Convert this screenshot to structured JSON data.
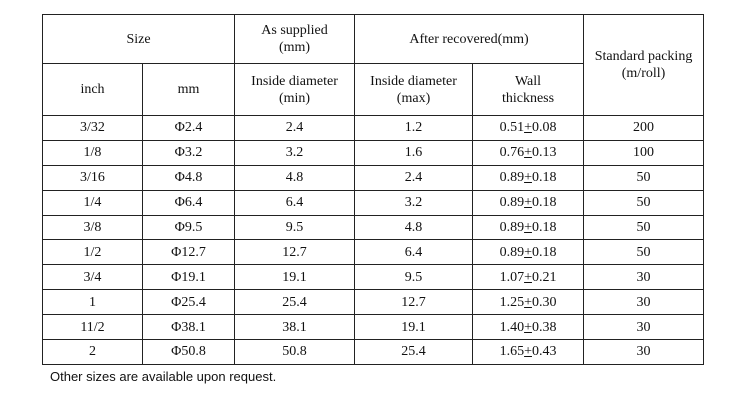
{
  "table": {
    "headers": {
      "size": "Size",
      "as_supplied": "As supplied\n(mm)",
      "after_recovered": "After recovered(mm)",
      "standard_packing": "Standard packing\n(m/roll)",
      "inch": "inch",
      "mm": "mm",
      "inside_diameter_min": "Inside diameter\n(min)",
      "inside_diameter_max": "Inside diameter\n(max)",
      "wall_thickness": "Wall\nthickness"
    },
    "rows": [
      {
        "inch": "3/32",
        "mm": "Φ2.4",
        "supplied_min": "2.4",
        "recovered_max": "1.2",
        "wall_base": "0.51",
        "wall_tol": "0.08",
        "packing": "200"
      },
      {
        "inch": "1/8",
        "mm": "Φ3.2",
        "supplied_min": "3.2",
        "recovered_max": "1.6",
        "wall_base": "0.76",
        "wall_tol": "0.13",
        "packing": "100"
      },
      {
        "inch": "3/16",
        "mm": "Φ4.8",
        "supplied_min": "4.8",
        "recovered_max": "2.4",
        "wall_base": "0.89",
        "wall_tol": "0.18",
        "packing": "50"
      },
      {
        "inch": "1/4",
        "mm": "Φ6.4",
        "supplied_min": "6.4",
        "recovered_max": "3.2",
        "wall_base": "0.89",
        "wall_tol": "0.18",
        "packing": "50"
      },
      {
        "inch": "3/8",
        "mm": "Φ9.5",
        "supplied_min": "9.5",
        "recovered_max": "4.8",
        "wall_base": "0.89",
        "wall_tol": "0.18",
        "packing": "50"
      },
      {
        "inch": "1/2",
        "mm": "Φ12.7",
        "supplied_min": "12.7",
        "recovered_max": "6.4",
        "wall_base": "0.89",
        "wall_tol": "0.18",
        "packing": "50"
      },
      {
        "inch": "3/4",
        "mm": "Φ19.1",
        "supplied_min": "19.1",
        "recovered_max": "9.5",
        "wall_base": "1.07",
        "wall_tol": "0.21",
        "packing": "30"
      },
      {
        "inch": "1",
        "mm": "Φ25.4",
        "supplied_min": "25.4",
        "recovered_max": "12.7",
        "wall_base": "1.25",
        "wall_tol": "0.30",
        "packing": "30"
      },
      {
        "inch": "11/2",
        "mm": "Φ38.1",
        "supplied_min": "38.1",
        "recovered_max": "19.1",
        "wall_base": "1.40",
        "wall_tol": "0.38",
        "packing": "30"
      },
      {
        "inch": "2",
        "mm": "Φ50.8",
        "supplied_min": "50.8",
        "recovered_max": "25.4",
        "wall_base": "1.65",
        "wall_tol": "0.43",
        "packing": "30"
      }
    ]
  },
  "footnote": "Other sizes are available upon request."
}
